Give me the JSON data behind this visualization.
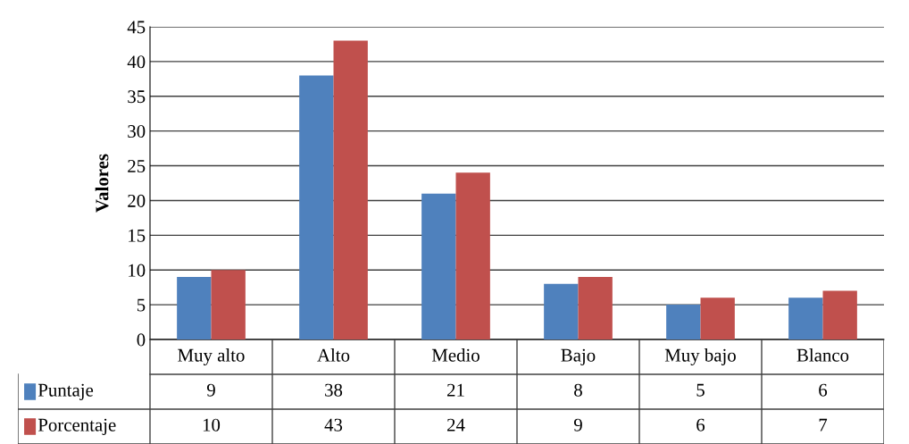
{
  "chart_data": {
    "type": "bar",
    "ylabel": "Valores",
    "categories": [
      "Muy alto",
      "Alto",
      "Medio",
      "Bajo",
      "Muy bajo",
      "Blanco"
    ],
    "series": [
      {
        "name": "Puntaje",
        "color": "#4f81bd",
        "values": [
          9,
          38,
          21,
          8,
          5,
          6
        ]
      },
      {
        "name": "Porcentaje",
        "color": "#c0504d",
        "values": [
          10,
          43,
          24,
          9,
          6,
          7
        ]
      }
    ],
    "ylim": [
      0,
      45
    ],
    "yticks": [
      0,
      5,
      10,
      15,
      20,
      25,
      30,
      35,
      40,
      45
    ],
    "grid": "y",
    "legend": "bottom",
    "data_labels": true
  }
}
